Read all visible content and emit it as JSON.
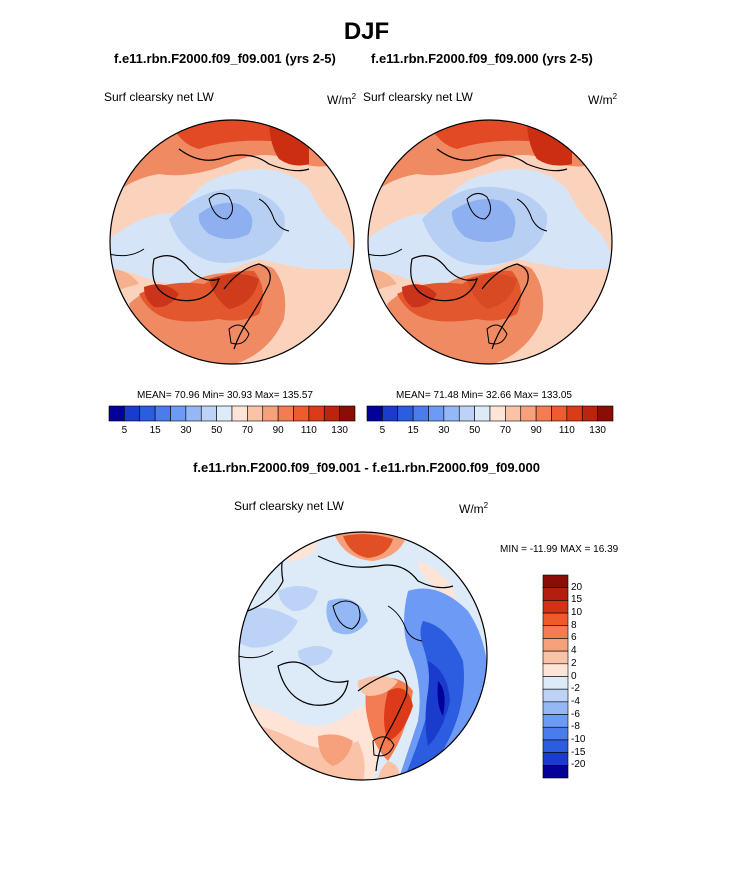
{
  "figure": {
    "season": "DJF",
    "case_a": "f.e11.rbn.F2000.f09_f09.001 (yrs 2-5)",
    "case_b": "f.e11.rbn.F2000.f09_f09.000 (yrs 2-5)",
    "diff_title": "f.e11.rbn.F2000.f09_f09.001 - f.e11.rbn.F2000.f09_f09.000"
  },
  "panels": [
    {
      "variable": "Surf clearsky net LW",
      "units_base": "W/m",
      "units_exp": "2",
      "stats": "MEAN=  70.96  Min=  30.93  Max= 135.57"
    },
    {
      "variable": "Surf clearsky net LW",
      "units_base": "W/m",
      "units_exp": "2",
      "stats": "MEAN=  71.48  Min=  32.66  Max= 133.05"
    }
  ],
  "diff_panel": {
    "variable": "Surf clearsky net LW",
    "units_base": "W/m",
    "units_exp": "2",
    "stats": "MIN = -11.99 MAX =  16.39"
  },
  "colorbar_top": {
    "colors": [
      "#04009a",
      "#1a3ccc",
      "#2c5ce0",
      "#4a7cee",
      "#6c9af4",
      "#94b8f6",
      "#bcd2f6",
      "#ddeaf8",
      "#fde4d6",
      "#fac2a6",
      "#f7a07c",
      "#f47c52",
      "#ef5a30",
      "#dc3a18",
      "#bc2410",
      "#8a0e06"
    ],
    "labels": [
      "5",
      "15",
      "30",
      "50",
      "70",
      "90",
      "110",
      "130"
    ]
  },
  "colorbar_diff": {
    "colors": [
      "#8a0e06",
      "#b41e10",
      "#d43218",
      "#f05a2a",
      "#f47c52",
      "#f7a07c",
      "#fac2a6",
      "#fde4d6",
      "#ddeaf8",
      "#bcd2f6",
      "#94b8f6",
      "#6c9af4",
      "#4a7cee",
      "#2c5ce0",
      "#1a3ccc",
      "#04009a"
    ],
    "labels": [
      "20",
      "15",
      "10",
      "8",
      "6",
      "4",
      "2",
      "0",
      "-2",
      "-4",
      "-6",
      "-8",
      "-10",
      "-15",
      "-20"
    ]
  }
}
